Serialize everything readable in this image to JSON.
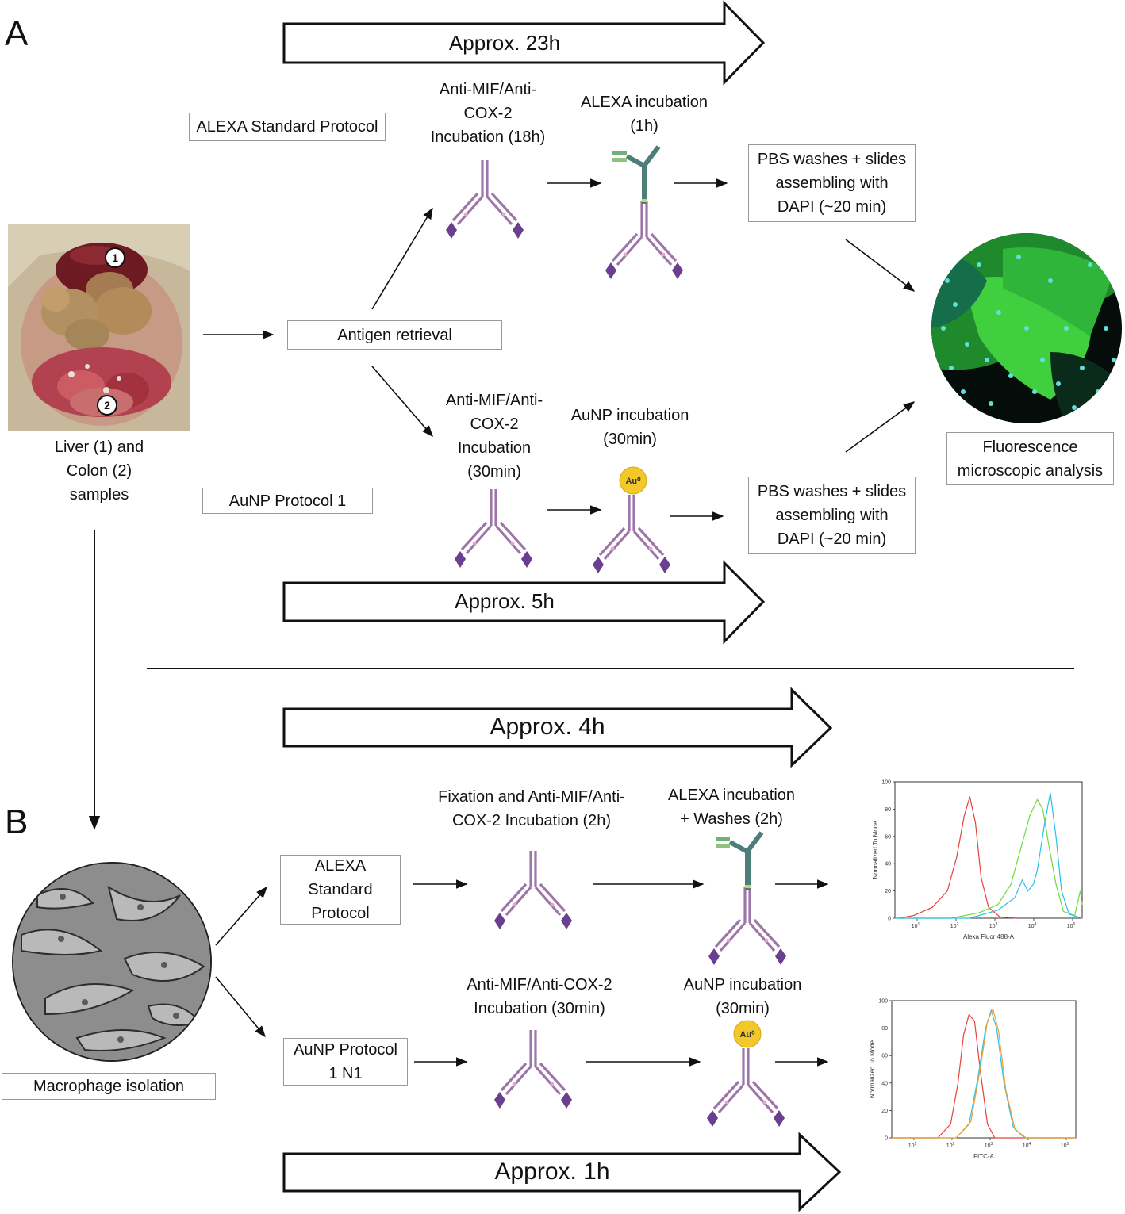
{
  "panels": {
    "a_letter": "A",
    "b_letter": "B"
  },
  "time_arrows": {
    "a_alexa": "Approx. 23h",
    "a_aunp": "Approx. 5h",
    "b_alexa": "Approx. 4h",
    "b_aunp": "Approx. 1h"
  },
  "panel_a": {
    "samples_lines": [
      "Liver (1) and",
      "Colon (2)",
      "samples"
    ],
    "sample_markers": [
      "1",
      "2"
    ],
    "antigen_retrieval": "Antigen retrieval",
    "alexa_protocol": "ALEXA Standard Protocol",
    "aunp_protocol": "AuNP Protocol 1",
    "alexa_step1_lines": [
      "Anti-MIF/Anti-",
      "COX-2",
      "Incubation (18h)"
    ],
    "alexa_step2_lines": [
      "ALEXA incubation",
      "(1h)"
    ],
    "aunp_step1_lines": [
      "Anti-MIF/Anti-",
      "COX-2",
      "Incubation",
      "(30min)"
    ],
    "aunp_step2_lines": [
      "AuNP incubation",
      "(30min)"
    ],
    "pbs_box_lines": [
      "PBS washes + slides",
      "assembling with",
      "DAPI  (~20 min)"
    ],
    "fluorescence_lines": [
      "Fluorescence",
      "microscopic analysis"
    ],
    "gold_label": "Au⁰"
  },
  "panel_b": {
    "macrophage_isolation": "Macrophage isolation",
    "alexa_protocol_lines": [
      "ALEXA",
      "Standard",
      "Protocol"
    ],
    "aunp_protocol_lines": [
      "AuNP Protocol",
      "1 N1"
    ],
    "alexa_step1_lines": [
      "Fixation and Anti-MIF/Anti-",
      "COX-2 Incubation (2h)"
    ],
    "alexa_step2_lines": [
      "ALEXA incubation",
      "+ Washes   (2h)"
    ],
    "aunp_step1_lines": [
      "Anti-MIF/Anti-COX-2",
      "Incubation (30min)"
    ],
    "aunp_step2_lines": [
      "AuNP incubation",
      "(30min)"
    ],
    "gold_label": "Au⁰"
  },
  "histograms": [
    {
      "ylabel": "Normalized To Mode",
      "xlabel": "Alexa Fluor 488-A",
      "y_ticks": [
        "0",
        "20",
        "40",
        "60",
        "80",
        "100"
      ],
      "x_tick_exponents": [
        "1",
        "2",
        "3",
        "4",
        "5"
      ],
      "x_tick_base": "10",
      "series_colors": [
        "#e8403a",
        "#6ddc3a",
        "#27c3e6"
      ]
    },
    {
      "ylabel": "Normalized To Mode",
      "xlabel": "FITC-A",
      "y_ticks": [
        "0",
        "20",
        "40",
        "60",
        "80",
        "100"
      ],
      "x_tick_exponents": [
        "1",
        "2",
        "3",
        "4",
        "5"
      ],
      "x_tick_base": "10",
      "series_colors": [
        "#e8403a",
        "#27c3e6",
        "#f0a030"
      ]
    }
  ],
  "colors": {
    "antibody_purple": "#9d75a8",
    "antibody_tip": "#6a3f8f",
    "secondary_teal": "#4e7e79",
    "gold": "#f3c82a"
  }
}
